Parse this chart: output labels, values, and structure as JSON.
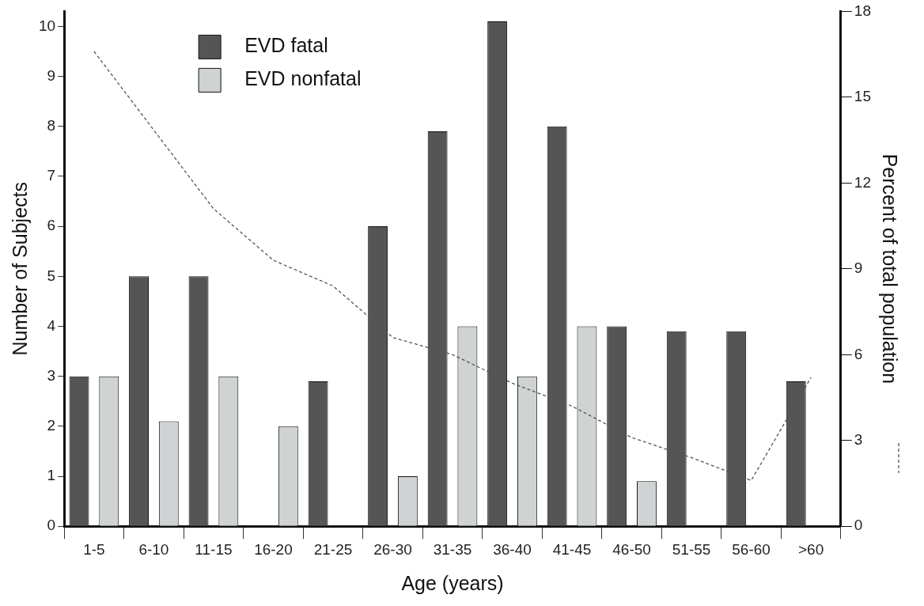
{
  "chart_data": {
    "type": "bar",
    "xlabel": "Age (years)",
    "ylabel": "Number of Subjects",
    "y2label": "Percent of total population",
    "categories": [
      "1-5",
      "6-10",
      "11-15",
      "16-20",
      "21-25",
      "26-30",
      "31-35",
      "36-40",
      "41-45",
      "46-50",
      "51-55",
      "56-60",
      ">60"
    ],
    "series": [
      {
        "name": "EVD fatal",
        "color": "#555555",
        "values": [
          3,
          5,
          5,
          0,
          2.9,
          6,
          7.9,
          10.1,
          8,
          4,
          3.9,
          3.9,
          2.9
        ]
      },
      {
        "name": "EVD nonfatal",
        "color": "#d0d3d4",
        "values": [
          3,
          2.1,
          3,
          2,
          0,
          1,
          4,
          3,
          4,
          0.9,
          0,
          0,
          0
        ]
      },
      {
        "type": "line",
        "axis": "y2",
        "color": "#555555",
        "line_style": "dashed",
        "marker": "none",
        "values": [
          16.6,
          null,
          11.1,
          9.3,
          8.4,
          6.6,
          6.0,
          5.0,
          4.2,
          3.1,
          2.4,
          1.6,
          5.2
        ]
      }
    ],
    "ylim": [
      0,
      10.3
    ],
    "yticks": [
      0,
      1,
      2,
      3,
      4,
      5,
      6,
      7,
      8,
      9,
      10
    ],
    "y2lim": [
      0,
      18
    ],
    "y2ticks": [
      0,
      3,
      6,
      9,
      12,
      15,
      18
    ],
    "legend": "top left",
    "grid": false
  }
}
